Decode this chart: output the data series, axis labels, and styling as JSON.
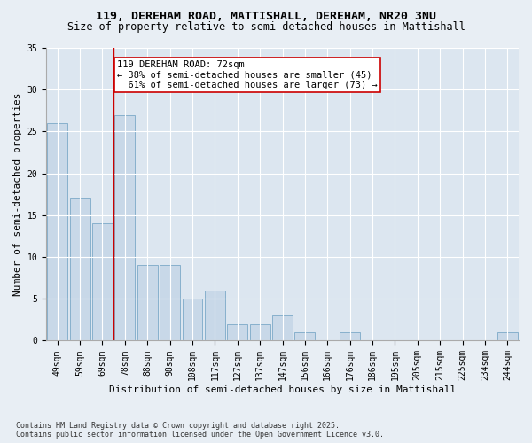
{
  "title1": "119, DEREHAM ROAD, MATTISHALL, DEREHAM, NR20 3NU",
  "title2": "Size of property relative to semi-detached houses in Mattishall",
  "xlabel": "Distribution of semi-detached houses by size in Mattishall",
  "ylabel": "Number of semi-detached properties",
  "categories": [
    "49sqm",
    "59sqm",
    "69sqm",
    "78sqm",
    "88sqm",
    "98sqm",
    "108sqm",
    "117sqm",
    "127sqm",
    "137sqm",
    "147sqm",
    "156sqm",
    "166sqm",
    "176sqm",
    "186sqm",
    "195sqm",
    "205sqm",
    "215sqm",
    "225sqm",
    "234sqm",
    "244sqm"
  ],
  "values": [
    26,
    17,
    14,
    27,
    9,
    9,
    5,
    6,
    2,
    2,
    3,
    1,
    0,
    1,
    0,
    0,
    0,
    0,
    0,
    0,
    1
  ],
  "bar_color": "#c8d8e8",
  "bar_edge_color": "#6a9ec0",
  "property_label": "119 DEREHAM ROAD: 72sqm",
  "pct_smaller": 38,
  "count_smaller": 45,
  "pct_larger": 61,
  "count_larger": 73,
  "vline_x_index": 2.5,
  "annotation_box_color": "#ffffff",
  "annotation_box_edge": "#cc0000",
  "vline_color": "#cc0000",
  "ylim": [
    0,
    35
  ],
  "yticks": [
    0,
    5,
    10,
    15,
    20,
    25,
    30,
    35
  ],
  "bg_color": "#e8eef4",
  "plot_bg_color": "#dce6f0",
  "footer": "Contains HM Land Registry data © Crown copyright and database right 2025.\nContains public sector information licensed under the Open Government Licence v3.0.",
  "title_fontsize": 9.5,
  "subtitle_fontsize": 8.5,
  "axis_label_fontsize": 8,
  "tick_fontsize": 7,
  "annotation_fontsize": 7.5
}
